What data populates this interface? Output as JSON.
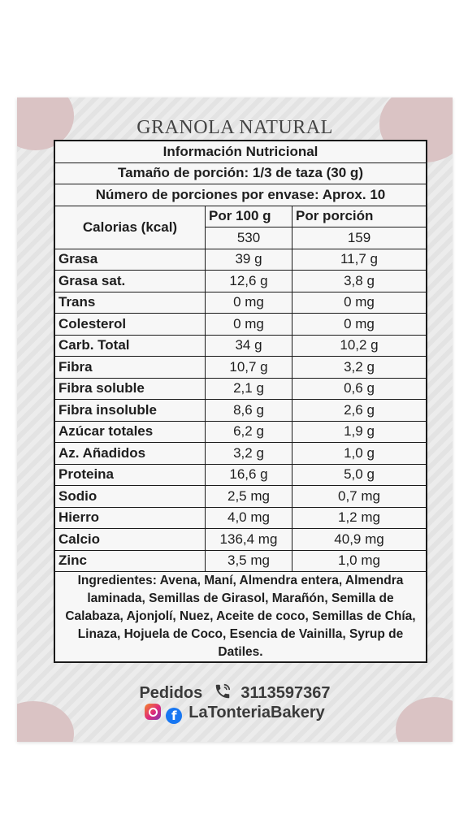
{
  "title": "GRANOLA NATURAL",
  "table": {
    "heading": "Información Nutricional",
    "serving_size": "Tamaño de porción: 1/3 de taza (30 g)",
    "servings": "Número de porciones por envase: Aprox. 10",
    "calories_label": "Calorias (kcal)",
    "col1_header": "Por 100 g",
    "col2_header": "Por porción",
    "calories_100": "530",
    "calories_portion": "159",
    "rows": [
      {
        "label": "Grasa",
        "per100": "39 g",
        "portion": "11,7 g"
      },
      {
        "label": "Grasa sat.",
        "per100": "12,6 g",
        "portion": "3,8 g"
      },
      {
        "label": "Trans",
        "per100": "0 mg",
        "portion": "0 mg"
      },
      {
        "label": "Colesterol",
        "per100": "0 mg",
        "portion": "0 mg"
      },
      {
        "label": "Carb. Total",
        "per100": "34 g",
        "portion": "10,2 g"
      },
      {
        "label": "Fibra",
        "per100": "10,7 g",
        "portion": "3,2 g"
      },
      {
        "label": "Fibra soluble",
        "per100": "2,1 g",
        "portion": "0,6 g"
      },
      {
        "label": "Fibra insoluble",
        "per100": "8,6 g",
        "portion": "2,6 g"
      },
      {
        "label": "Azúcar totales",
        "per100": "6,2 g",
        "portion": "1,9 g"
      },
      {
        "label": "Az. Añadidos",
        "per100": "3,2 g",
        "portion": "1,0 g"
      },
      {
        "label": "Proteina",
        "per100": "16,6 g",
        "portion": "5,0 g"
      },
      {
        "label": "Sodio",
        "per100": "2,5 mg",
        "portion": "0,7 mg"
      },
      {
        "label": "Hierro",
        "per100": "4,0 mg",
        "portion": "1,2 mg"
      },
      {
        "label": "Calcio",
        "per100": "136,4 mg",
        "portion": "40,9 mg"
      },
      {
        "label": "Zinc",
        "per100": "3,5 mg",
        "portion": "1,0 mg"
      }
    ],
    "ingredients": "Ingredientes: Avena, Maní, Almendra entera, Almendra laminada, Semillas de Girasol, Marañón, Semilla de Calabaza, Ajonjolí, Nuez, Aceite de coco, Semillas de Chía, Linaza, Hojuela de Coco, Esencia de Vainilla, Syrup de Datiles."
  },
  "footer": {
    "orders_label": "Pedidos",
    "phone": "3113597367",
    "social_handle": "LaTonteriaBakery"
  },
  "icons": [
    "phone-icon",
    "instagram-icon",
    "facebook-icon"
  ],
  "colors": {
    "accent_blob": "#d8bfc0",
    "card": "#e8e8e8",
    "border": "#1a1a1a"
  }
}
